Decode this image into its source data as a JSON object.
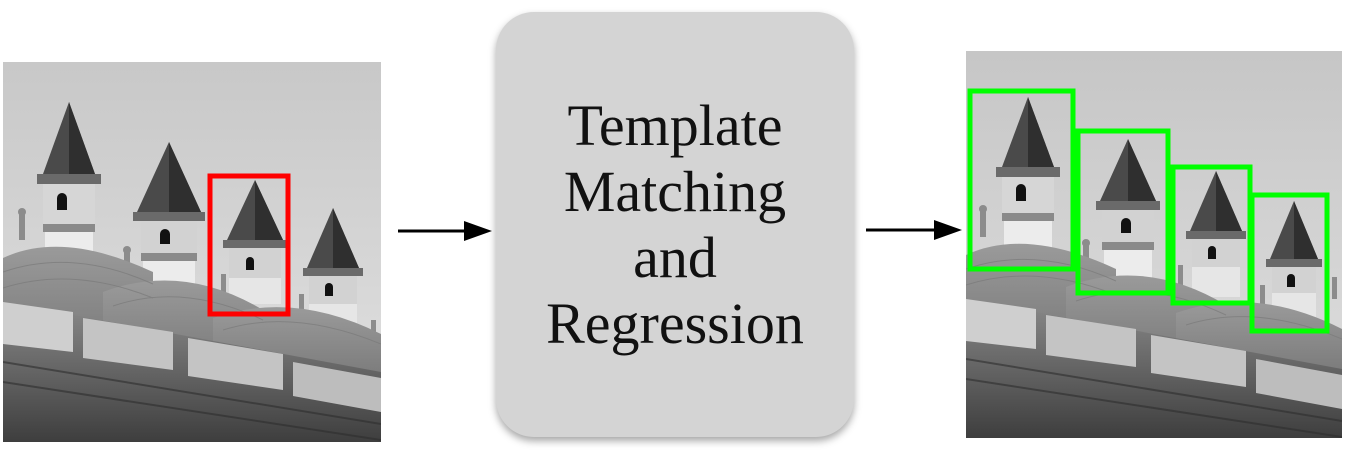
{
  "diagram": {
    "input_image": {
      "subject": "grayscale-mosque-towers",
      "template_box_color": "#ff0000"
    },
    "process": {
      "lines": [
        "Template",
        "Matching",
        "and",
        "Regression"
      ]
    },
    "output_image": {
      "subject": "grayscale-mosque-towers",
      "match_box_color": "#00ff00",
      "match_count": 4
    },
    "arrow_color": "#000000"
  }
}
